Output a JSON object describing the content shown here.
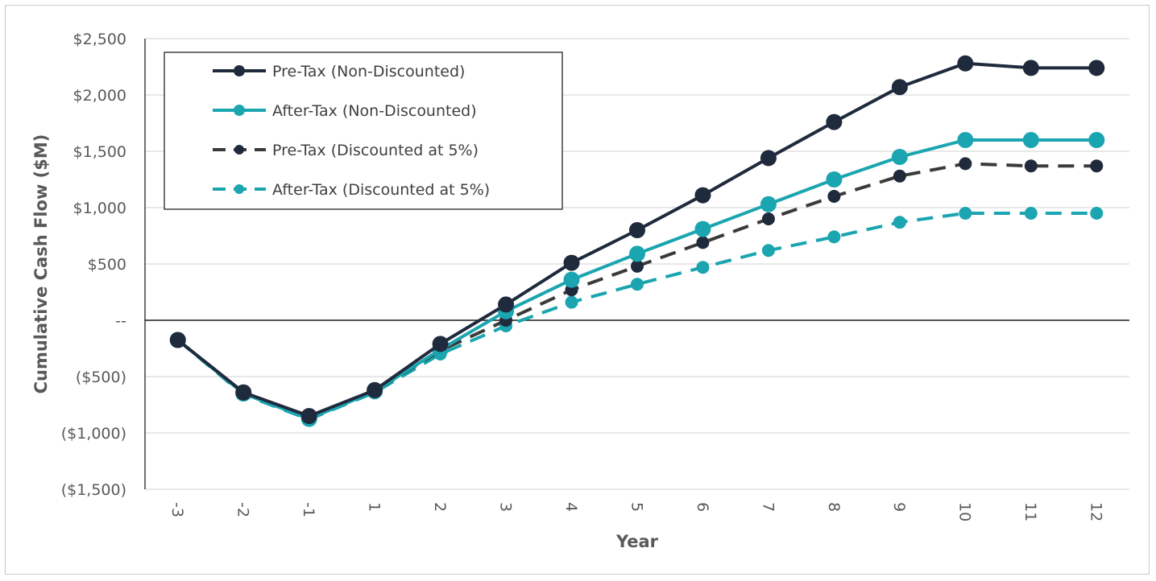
{
  "chart_data": {
    "type": "line",
    "xlabel": "Year",
    "ylabel": "Cumulative Cash Flow ($M)",
    "categories": [
      "-3",
      "-2",
      "-1",
      "1",
      "2",
      "3",
      "4",
      "5",
      "6",
      "7",
      "8",
      "9",
      "10",
      "11",
      "12"
    ],
    "ylim": [
      -1500,
      2500
    ],
    "yticks": [
      2500,
      2000,
      1500,
      1000,
      500,
      0,
      -500,
      -1000,
      -1500
    ],
    "ytick_labels": [
      "$2,500",
      "$2,000",
      "$1,500",
      "$1,000",
      "$500",
      "--",
      "($500)",
      "($1,000)",
      "($1,500)"
    ],
    "grid": true,
    "legend_position": "top-left",
    "series": [
      {
        "name": "Pre-Tax (Non-Discounted)",
        "color": "#1f2a3c",
        "dashed": false,
        "values": [
          -175,
          -640,
          -850,
          -620,
          -210,
          140,
          510,
          800,
          1110,
          1440,
          1760,
          2070,
          2280,
          2240,
          2240
        ]
      },
      {
        "name": "After-Tax (Non-Discounted)",
        "color": "#1aa5b0",
        "dashed": false,
        "values": [
          -175,
          -650,
          -875,
          -630,
          -260,
          80,
          360,
          590,
          810,
          1030,
          1250,
          1450,
          1600,
          1600,
          1600
        ]
      },
      {
        "name": "Pre-Tax (Discounted at 5%)",
        "color": "#1f2a3c",
        "line_color": "#3a3a3a",
        "dashed": true,
        "values": [
          -175,
          -650,
          -860,
          -630,
          -270,
          0,
          270,
          480,
          690,
          900,
          1100,
          1280,
          1390,
          1370,
          1370
        ]
      },
      {
        "name": "After-Tax (Discounted at 5%)",
        "color": "#1aa5b0",
        "dashed": true,
        "values": [
          -175,
          -660,
          -880,
          -640,
          -300,
          -50,
          160,
          320,
          470,
          620,
          740,
          870,
          950,
          950,
          950
        ]
      }
    ]
  }
}
